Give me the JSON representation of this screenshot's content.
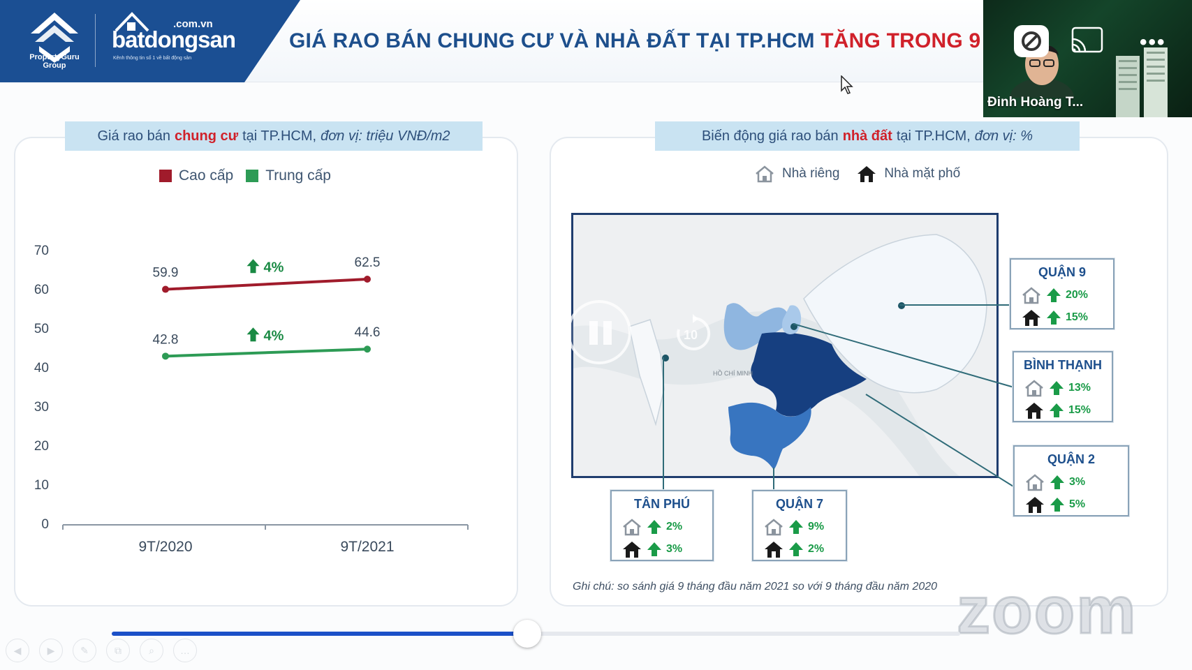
{
  "header": {
    "logo_propertyguru": "PropertyGuru",
    "logo_propertyguru_sub": "Group",
    "logo_bds_domain": ".com.vn",
    "logo_bds_name": "batdongsan",
    "logo_bds_tagline": "Kênh thông tin số 1 về bất động sản",
    "title_main": "GIÁ RAO BÁN CHUNG CƯ VÀ NHÀ ĐẤT TẠI TP.HCM",
    "title_highlight": "TĂNG TRONG 9"
  },
  "left_panel": {
    "title_prefix": "Giá rao bán",
    "title_keyword": "chung cư",
    "title_mid": "tại TP.HCM,",
    "title_unit": "đơn vị: triệu VNĐ/m2"
  },
  "right_panel": {
    "title_prefix": "Biến động giá rao bán",
    "title_keyword": "nhà đất",
    "title_mid": "tại TP.HCM,",
    "title_unit": "đơn vị: %",
    "legend_private": "Nhà riêng",
    "legend_street": "Nhà mặt phố",
    "footnote": "Ghi chú: so sánh giá 9 tháng đầu năm 2021 so với 9 tháng đầu năm 2020"
  },
  "chart_data": {
    "type": "line",
    "categories": [
      "9T/2020",
      "9T/2021"
    ],
    "series": [
      {
        "name": "Cao cấp",
        "values": [
          59.9,
          62.5
        ],
        "color": "#a01b2b",
        "change_label": "4%"
      },
      {
        "name": "Trung cấp",
        "values": [
          42.8,
          44.6
        ],
        "color": "#2d9b55",
        "change_label": "4%"
      }
    ],
    "yticks": [
      0,
      10,
      20,
      30,
      40,
      50,
      60,
      70
    ],
    "ylim": [
      0,
      70
    ],
    "legend": "top",
    "grid": false
  },
  "districts": [
    {
      "id": "quan9",
      "name": "QUẬN 9",
      "private": "20%",
      "street": "15%"
    },
    {
      "id": "binhthanh",
      "name": "BÌNH THẠNH",
      "private": "13%",
      "street": "15%"
    },
    {
      "id": "quan2",
      "name": "QUẬN 2",
      "private": "3%",
      "street": "5%"
    },
    {
      "id": "tanphu",
      "name": "TÂN PHÚ",
      "private": "2%",
      "street": "3%"
    },
    {
      "id": "quan7",
      "name": "QUẬN 7",
      "private": "9%",
      "street": "2%"
    }
  ],
  "map_labels": {
    "center": "HỒ CHÍ MINH"
  },
  "video": {
    "participant_name": "Đinh Hoàng T...",
    "more": "•••"
  },
  "overlay": {
    "skip_label": "10",
    "watermark": "zoom"
  },
  "playback": {
    "progress": 0.49
  },
  "toolbar": [
    "◀",
    "▶",
    "✎",
    "⧉",
    "⌕",
    "…"
  ],
  "colors": {
    "brand_blue": "#1b4f93",
    "accent_red": "#d0212a",
    "up_green": "#1a9b48"
  }
}
